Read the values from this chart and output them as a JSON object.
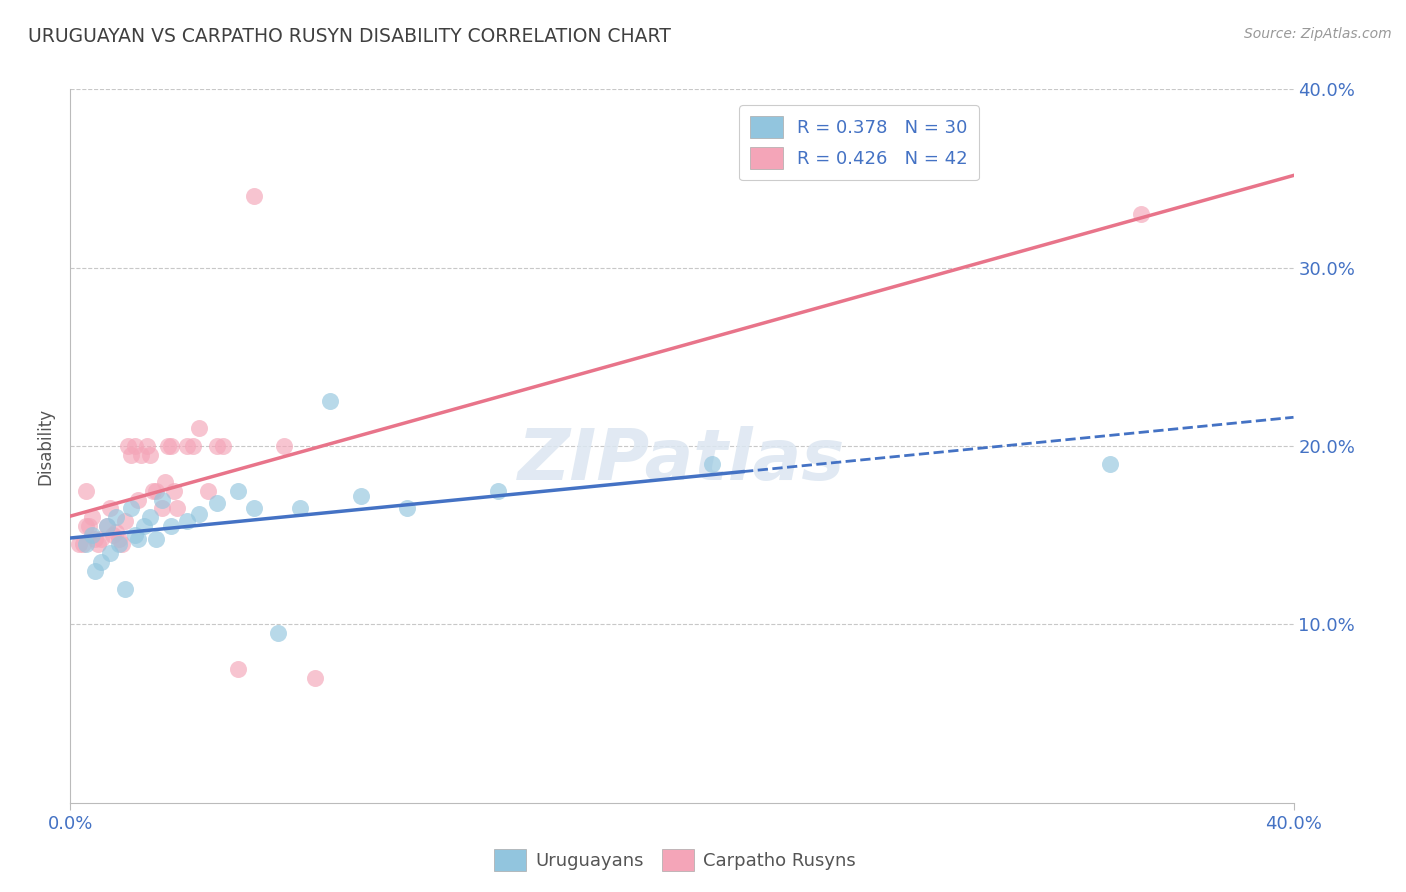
{
  "title": "URUGUAYAN VS CARPATHO RUSYN DISABILITY CORRELATION CHART",
  "source": "Source: ZipAtlas.com",
  "ylabel": "Disability",
  "xlim": [
    0.0,
    0.4
  ],
  "ylim": [
    0.0,
    0.4
  ],
  "xtick_vals": [
    0.0,
    0.4
  ],
  "xtick_labels": [
    "0.0%",
    "40.0%"
  ],
  "ytick_vals": [
    0.1,
    0.2,
    0.3,
    0.4
  ],
  "ytick_labels": [
    "10.0%",
    "20.0%",
    "30.0%",
    "40.0%"
  ],
  "blue_color": "#92c5de",
  "pink_color": "#f4a5b8",
  "blue_line_color": "#4472c4",
  "pink_line_color": "#e8748a",
  "text_color": "#4472c4",
  "title_color": "#404040",
  "grid_color": "#c8c8c8",
  "watermark_color": "#dce6f1",
  "legend_labels": [
    "R = 0.378   N = 30",
    "R = 0.426   N = 42"
  ],
  "bottom_labels": [
    "Uruguayans",
    "Carpatho Rusyns"
  ],
  "uruguayan_x": [
    0.005,
    0.007,
    0.008,
    0.01,
    0.012,
    0.013,
    0.015,
    0.016,
    0.018,
    0.02,
    0.021,
    0.022,
    0.024,
    0.026,
    0.028,
    0.03,
    0.033,
    0.038,
    0.042,
    0.048,
    0.055,
    0.06,
    0.068,
    0.075,
    0.085,
    0.095,
    0.11,
    0.14,
    0.21,
    0.34
  ],
  "uruguayan_y": [
    0.145,
    0.15,
    0.13,
    0.135,
    0.155,
    0.14,
    0.16,
    0.145,
    0.12,
    0.165,
    0.15,
    0.148,
    0.155,
    0.16,
    0.148,
    0.17,
    0.155,
    0.158,
    0.162,
    0.168,
    0.175,
    0.165,
    0.095,
    0.165,
    0.225,
    0.172,
    0.165,
    0.175,
    0.19,
    0.19
  ],
  "carpatho_x": [
    0.003,
    0.004,
    0.005,
    0.005,
    0.006,
    0.007,
    0.008,
    0.009,
    0.01,
    0.012,
    0.013,
    0.014,
    0.015,
    0.016,
    0.017,
    0.018,
    0.019,
    0.02,
    0.021,
    0.022,
    0.023,
    0.025,
    0.026,
    0.027,
    0.028,
    0.03,
    0.031,
    0.032,
    0.033,
    0.034,
    0.035,
    0.038,
    0.04,
    0.042,
    0.045,
    0.048,
    0.05,
    0.055,
    0.06,
    0.07,
    0.08,
    0.35
  ],
  "carpatho_y": [
    0.145,
    0.145,
    0.155,
    0.175,
    0.155,
    0.16,
    0.148,
    0.145,
    0.148,
    0.155,
    0.165,
    0.15,
    0.152,
    0.148,
    0.145,
    0.158,
    0.2,
    0.195,
    0.2,
    0.17,
    0.195,
    0.2,
    0.195,
    0.175,
    0.175,
    0.165,
    0.18,
    0.2,
    0.2,
    0.175,
    0.165,
    0.2,
    0.2,
    0.21,
    0.175,
    0.2,
    0.2,
    0.075,
    0.34,
    0.2,
    0.07,
    0.33
  ]
}
